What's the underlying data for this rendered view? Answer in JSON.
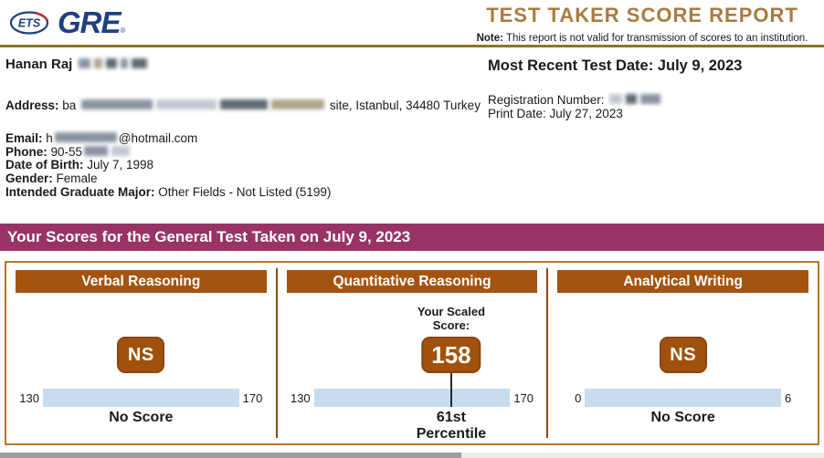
{
  "header": {
    "logo": {
      "ets": "ETS",
      "gre": "GRE",
      "reg_mark": "®"
    },
    "title": "TEST TAKER SCORE REPORT",
    "note_label": "Note:",
    "note_text": " This report is not valid for transmission of scores to an institution."
  },
  "personal": {
    "name_visible": "Hanan Raj",
    "address_label": "Address: ",
    "address_prefix": "ba",
    "address_suffix": "site, Istanbul, 34480 Turkey",
    "email_label": "Email: ",
    "email_prefix": "h",
    "email_suffix": "@hotmail.com",
    "phone_label": "Phone: ",
    "phone_visible": "90-55",
    "dob_label": "Date of Birth: ",
    "dob": "July 7, 1998",
    "gender_label": "Gender: ",
    "gender": "Female",
    "major_label": "Intended Graduate Major: ",
    "major": "Other Fields - Not Listed (5199)"
  },
  "test_info": {
    "most_recent": "Most Recent Test Date: July 9, 2023",
    "registration_label": "Registration Number: ",
    "print_date": "Print Date: July 27, 2023"
  },
  "banner": {
    "text": "Your Scores for the General Test Taken on July 9, 2023"
  },
  "scores": {
    "panels": [
      {
        "title": "Verbal Reasoning",
        "score": "NS",
        "scale_min": "130",
        "scale_max": "170",
        "caption": "No Score",
        "badge_percent": 50,
        "caption_percent": 50
      },
      {
        "title": "Quantitative Reasoning",
        "scaled_label": "Your Scaled\nScore:",
        "score": "158",
        "scale_min": "130",
        "scale_max": "170",
        "caption": "61st\nPercentile",
        "badge_percent": 70,
        "caption_percent": 70
      },
      {
        "title": "Analytical Writing",
        "score": "NS",
        "scale_min": "0",
        "scale_max": "6",
        "caption": "No Score",
        "badge_percent": 50,
        "caption_percent": 50
      }
    ]
  },
  "colors": {
    "banner_bg": "#993366",
    "panel_header_bg": "#a5540f",
    "badge_bg": "#a0510e",
    "scale_bar_blue": "#c8dcef",
    "title_gold": "#a87b3e",
    "rule_gold": "#8a7434",
    "logo_blue": "#1e4080",
    "logo_red": "#b5332d",
    "box_border": "#b5762b"
  }
}
